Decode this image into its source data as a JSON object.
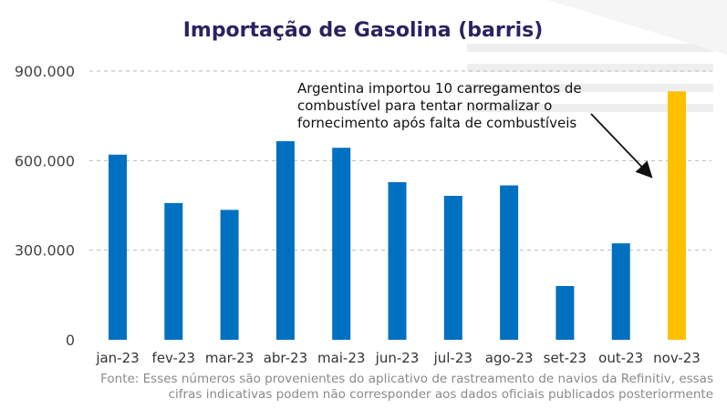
{
  "chart_data": {
    "type": "bar",
    "title": "Importação de Gasolina (barris)",
    "categories": [
      "jan-23",
      "fev-23",
      "mar-23",
      "abr-23",
      "mai-23",
      "jun-23",
      "jul-23",
      "ago-23",
      "set-23",
      "out-23",
      "nov-23"
    ],
    "values": [
      620000,
      458000,
      435000,
      665000,
      643000,
      528000,
      482000,
      517000,
      180000,
      323000,
      832000
    ],
    "ylim": [
      0,
      900000
    ],
    "yticks": [
      0,
      300000,
      600000,
      900000
    ],
    "ytick_labels": [
      "0",
      "300.000",
      "600.000",
      "900.000"
    ],
    "grid": true,
    "bar_color": "#0070c0",
    "highlight_color": "#ffc000",
    "highlight_index": 10,
    "annotation": {
      "lines": [
        "Argentina importou 10 carregamentos de",
        "combustível para tentar normalizar o",
        "fornecimento após falta de combustíveis"
      ],
      "target_category": "nov-23"
    },
    "source": [
      "Fonte: Esses números são provenientes do aplicativo de rastreamento de navios da Refinitiv, essas",
      "cifras indicativas podem não corresponder aos dados oficiais publicados posteriormente"
    ]
  }
}
